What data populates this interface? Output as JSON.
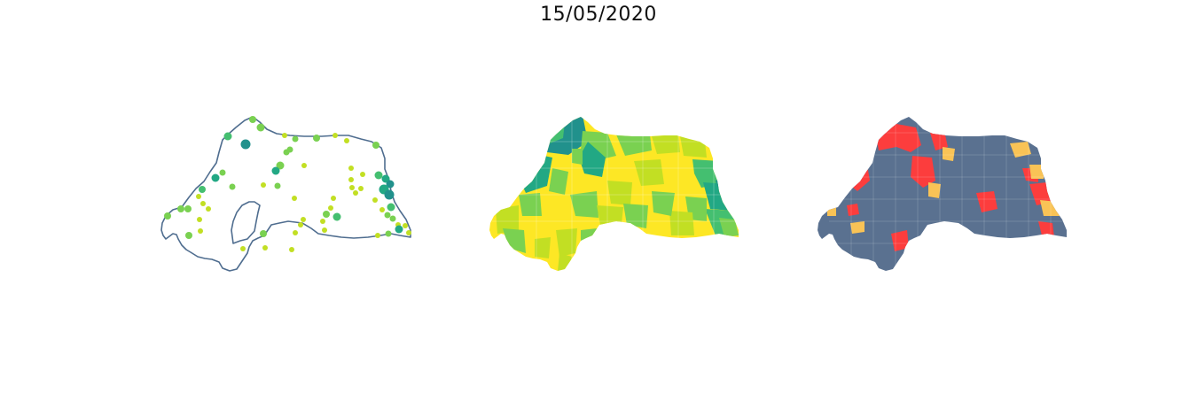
{
  "title": "15/05/2020",
  "panels": [
    {
      "id": "points",
      "type": "map-bubbles"
    },
    {
      "id": "choropleth",
      "type": "map-choropleth"
    },
    {
      "id": "alert",
      "type": "map-categorical"
    }
  ],
  "colors": {
    "outline": "#4f6d8f",
    "viridis_yellow": "#fde725",
    "viridis_lime": "#c2df23",
    "viridis_lightgreen": "#7ad151",
    "viridis_green": "#44bf70",
    "viridis_teal": "#22a884",
    "viridis_blue": "#21918c",
    "alert_slate": "#5a7190",
    "alert_red": "#fc3d3d",
    "alert_orange": "#f9c356"
  }
}
